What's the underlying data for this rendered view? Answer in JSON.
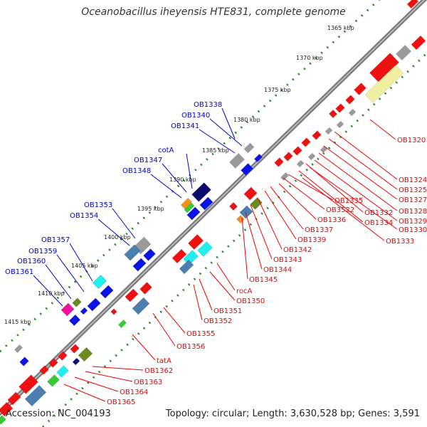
{
  "title": "Oceanobacillus iheyensis HTE831, complete genome",
  "footer": {
    "accession": "Accession: NC_004193",
    "summary": "Topology: circular; Length: 3,630,528 bp; Genes: 3,591"
  },
  "colors": {
    "backbone": "#8a8a8a",
    "plus_strand_label": "#0000cc",
    "minus_strand_label": "#ee0000",
    "gene_blue": "#0a14e6",
    "gene_red": "#ee1111",
    "gene_grey": "#9a9a9a",
    "gene_cyan": "#22eeee",
    "gene_steelblue": "#4a7fb0",
    "gene_olive": "#6d8a20",
    "gene_navy": "#0c0c70",
    "gene_magenta": "#ee1199",
    "gene_yellow": "#f0eea0",
    "gene_green": "#33cc33",
    "gene_orange": "#f09020"
  },
  "ticks": [
    "1365 kbp",
    "1370 kbp",
    "1375 kbp",
    "1380 kbp",
    "1385 kbp",
    "1390 kbp",
    "1395 kbp",
    "1400 kbp",
    "1405 kbp",
    "1410 kbp",
    "1415 kbp"
  ],
  "plus_labels": [
    "OB1338",
    "OB1340",
    "OB1341",
    "cotA",
    "OB1347",
    "OB1348",
    "OB1353",
    "OB1354",
    "OB1357",
    "OB1359",
    "OB1360",
    "OB1361"
  ],
  "minus_labels": [
    "OB1320",
    "OB1324",
    "OB1325",
    "OB1327",
    "OB1328",
    "OB1329",
    "OB1330",
    "OB1332",
    "OB1334",
    "OB1333",
    "OB1335",
    "OB3522",
    "OB1336",
    "OB1337",
    "OB1339",
    "OB1342",
    "OB1343",
    "OB1344",
    "OB1345",
    "rocA",
    "OB1350",
    "OB1351",
    "OB1352",
    "OB1355",
    "OB1356",
    "tatA",
    "OB1362",
    "OB1363",
    "OB1364",
    "OB1365"
  ]
}
